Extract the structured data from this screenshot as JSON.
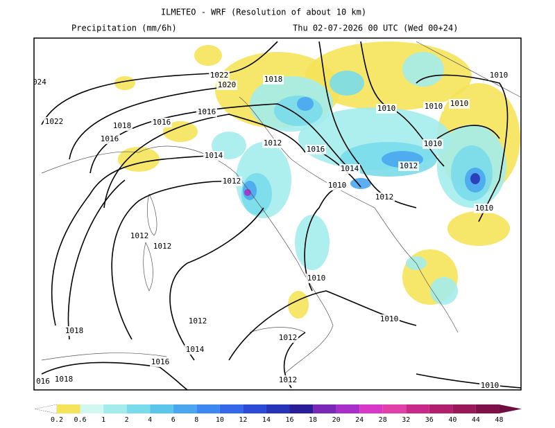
{
  "header": {
    "title": "ILMETEO - WRF (Resolution of about 10 km)",
    "variable": "Precipitation (mm/6h)",
    "valid_time": "Thu 02-07-2026 00 UTC (Wed 00+24)"
  },
  "isobar_labels": [
    "1022",
    "1020",
    "1018",
    "1016",
    "1016",
    "1018",
    "1016",
    "1022",
    "024",
    "1014",
    "1012",
    "1016",
    "1014",
    "1012",
    "1010",
    "1012",
    "1012",
    "1010",
    "1010",
    "1010",
    "1010",
    "1010",
    "1010",
    "1012",
    "1012",
    "1010",
    "1012",
    "1010",
    "1018",
    "1014",
    "1012",
    "1016",
    "1018",
    "016",
    "1012",
    "1010"
  ],
  "colorbar": {
    "labels": [
      "0.2",
      "0.6",
      "1",
      "2",
      "4",
      "6",
      "8",
      "10",
      "12",
      "14",
      "16",
      "18",
      "20",
      "24",
      "28",
      "32",
      "36",
      "40",
      "44",
      "48"
    ],
    "colors": [
      "#f5e35a",
      "#d2f6f0",
      "#a4ecec",
      "#7adcea",
      "#5cc6ea",
      "#4aa6ee",
      "#3c88f0",
      "#3468e8",
      "#2c4ad8",
      "#2834b8",
      "#2a1e98",
      "#7a28b8",
      "#a830c8",
      "#d838c8",
      "#e040a8",
      "#c82888",
      "#b0206c",
      "#981858",
      "#801048",
      "#6e0e40"
    ]
  }
}
